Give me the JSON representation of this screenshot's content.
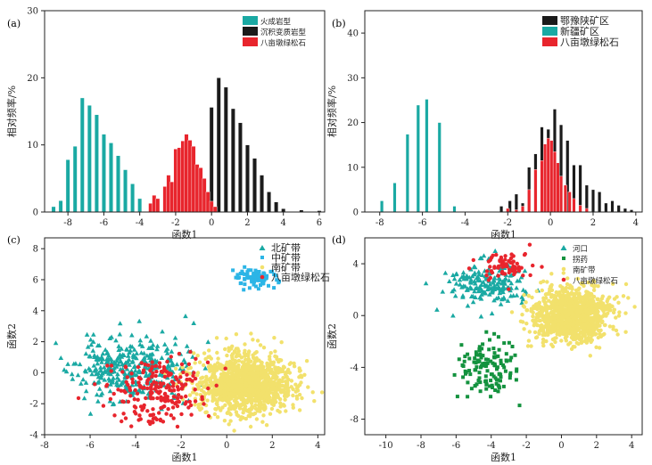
{
  "colors": {
    "igneous": "#1aa9a3",
    "sedimentary": "#1b1b1b",
    "bamudun": "#e8252d",
    "henan": "#1b1b1b",
    "xinjiang": "#1aa9a3",
    "north": "#1aa9a3",
    "middle": "#2cb5e6",
    "south": "#f2e16c",
    "bamudun_pts": "#e8252d",
    "hekou": "#1aa9a3",
    "zhaoyao": "#13923e",
    "nankuangdai": "#f2e16c"
  },
  "chart_data": [
    {
      "panel": "(a)",
      "type": "bar",
      "xlabel": "函数1",
      "ylabel": "相对频率/%",
      "xlim": [
        -9.3,
        6.3
      ],
      "ylim": [
        0,
        30
      ],
      "xticks": [
        -8,
        -6,
        -4,
        -2,
        0,
        2,
        4,
        6
      ],
      "yticks": [
        0,
        10,
        20,
        30
      ],
      "bin_width": 0.22,
      "legend_position": "top-right",
      "series": [
        {
          "name": "火成岩型",
          "color_key": "igneous",
          "x": [
            -8.8,
            -8.4,
            -8.0,
            -7.6,
            -7.2,
            -6.8,
            -6.4,
            -6.0,
            -5.6,
            -5.2,
            -4.8,
            -4.4,
            -4.0
          ],
          "values": [
            0.8,
            1.7,
            7.8,
            9.8,
            17.0,
            15.9,
            14.5,
            11.6,
            10.3,
            8.4,
            6.3,
            4.2,
            2.0
          ]
        },
        {
          "name": "沉积变质岩型",
          "color_key": "sedimentary",
          "x": [
            -1.2,
            -0.8,
            -0.4,
            0.0,
            0.4,
            0.8,
            1.2,
            1.6,
            2.0,
            2.4,
            2.8,
            3.2,
            3.6,
            4.0,
            5.0,
            6.0
          ],
          "values": [
            0.5,
            1.0,
            2.0,
            15.6,
            20.0,
            18.6,
            15.4,
            13.3,
            10.0,
            8.0,
            5.5,
            3.0,
            1.5,
            0.5,
            0.3,
            0.2
          ]
        },
        {
          "name": "八亩墩绿松石",
          "color_key": "bamudun",
          "x": [
            -3.4,
            -3.2,
            -3.0,
            -2.6,
            -2.4,
            -2.2,
            -2.0,
            -1.8,
            -1.6,
            -1.4,
            -1.2,
            -1.0,
            -0.8,
            -0.6,
            -0.4,
            -0.2,
            0.0,
            0.2
          ],
          "values": [
            1.3,
            2.5,
            2.0,
            3.8,
            5.5,
            4.5,
            9.4,
            9.6,
            10.6,
            11.6,
            10.7,
            9.8,
            7.1,
            6.6,
            5.0,
            3.0,
            1.6,
            0.8
          ]
        }
      ]
    },
    {
      "panel": "(b)",
      "type": "bar",
      "xlabel": "函数1",
      "ylabel": "相对频率/%",
      "xlim": [
        -8.7,
        4.3
      ],
      "ylim": [
        0,
        45
      ],
      "xticks": [
        -8,
        -6,
        -4,
        -2,
        0,
        2,
        4
      ],
      "yticks": [
        0,
        10,
        20,
        30,
        40
      ],
      "bin_width": 0.15,
      "legend_position": "top-right",
      "series": [
        {
          "name": "鄂豫陕矿区",
          "color_key": "henan",
          "x": [
            -2.3,
            -1.9,
            -1.6,
            -1.3,
            -1.0,
            -0.7,
            -0.4,
            -0.1,
            0.2,
            0.5,
            0.8,
            1.1,
            1.4,
            1.7,
            2.0,
            2.3,
            2.6,
            2.9,
            3.2,
            3.5,
            3.8
          ],
          "values": [
            1.3,
            2.5,
            4.0,
            2.0,
            10.0,
            13.0,
            19.0,
            18.5,
            23.0,
            19.5,
            16.0,
            10.5,
            10.5,
            6.0,
            5.0,
            4.5,
            2.0,
            2.5,
            1.5,
            0.8,
            0.5
          ]
        },
        {
          "name": "新疆矿区",
          "color_key": "xinjiang",
          "x": [
            -7.9,
            -7.3,
            -6.7,
            -6.2,
            -5.8,
            -5.2,
            -4.5
          ],
          "values": [
            2.5,
            6.5,
            17.4,
            23.9,
            25.2,
            20.0,
            1.3
          ]
        },
        {
          "name": "八亩墩绿松石",
          "color_key": "bamudun",
          "x": [
            -2.0,
            -1.6,
            -1.3,
            -1.0,
            -0.7,
            -0.4,
            -0.25,
            -0.1,
            0.05,
            0.2,
            0.35,
            0.5,
            0.7,
            0.9,
            1.1,
            1.4,
            1.7
          ],
          "values": [
            0.8,
            0.5,
            1.3,
            5.0,
            9.5,
            11.5,
            15.2,
            16.5,
            16.0,
            13.5,
            11.0,
            8.0,
            6.0,
            4.5,
            3.0,
            1.5,
            0.8
          ]
        }
      ]
    },
    {
      "panel": "(c)",
      "type": "scatter",
      "xlabel": "函数1",
      "ylabel": "函数2",
      "xlim": [
        -8,
        4.3
      ],
      "ylim": [
        -4,
        8.7
      ],
      "xticks": [
        -8,
        -6,
        -4,
        -2,
        0,
        2,
        4
      ],
      "yticks": [
        -4,
        -2,
        0,
        2,
        4,
        6,
        8
      ],
      "legend_position": "top-right",
      "series": [
        {
          "name": "北矿带",
          "color_key": "north",
          "marker": "triangle",
          "center": [
            -4.3,
            0.2
          ],
          "spread": [
            1.2,
            1.0
          ],
          "count": 360,
          "seed": 11
        },
        {
          "name": "中矿带",
          "color_key": "middle",
          "marker": "square",
          "center": [
            1.2,
            6.1
          ],
          "spread": [
            0.5,
            0.35
          ],
          "count": 75,
          "seed": 23
        },
        {
          "name": "南矿带",
          "color_key": "south",
          "marker": "circle",
          "center": [
            0.8,
            -0.7
          ],
          "spread": [
            1.05,
            0.95
          ],
          "count": 1300,
          "seed": 37
        },
        {
          "name": "八亩墩绿松石",
          "color_key": "bamudun_pts",
          "marker": "circle",
          "center": [
            -3.1,
            -1.2
          ],
          "spread": [
            1.0,
            1.05
          ],
          "count": 220,
          "seed": 53
        }
      ]
    },
    {
      "panel": "(d)",
      "type": "scatter",
      "xlabel": "函数1",
      "ylabel": "函数2",
      "xlim": [
        -11.2,
        4.6
      ],
      "ylim": [
        -9.2,
        6.0
      ],
      "xticks": [
        -10,
        -8,
        -6,
        -4,
        -2,
        0,
        2,
        4
      ],
      "yticks": [
        -8,
        -4,
        0,
        4
      ],
      "legend_position": "top-right",
      "series": [
        {
          "name": "河口",
          "color_key": "hekou",
          "marker": "triangle",
          "center": [
            -4.1,
            2.5
          ],
          "spread": [
            1.2,
            0.85
          ],
          "count": 190,
          "seed": 71
        },
        {
          "name": "拐药",
          "color_key": "zhaoyao",
          "marker": "square",
          "center": [
            -4.3,
            -4.0
          ],
          "spread": [
            0.85,
            1.2
          ],
          "count": 130,
          "seed": 83
        },
        {
          "name": "南矿带",
          "color_key": "nankuangdai",
          "marker": "circle",
          "center": [
            0.6,
            0.0
          ],
          "spread": [
            1.1,
            1.05
          ],
          "count": 1100,
          "seed": 97
        },
        {
          "name": "八亩墩绿松石",
          "color_key": "bamudun_pts",
          "marker": "circle",
          "center": [
            -3.0,
            3.8
          ],
          "spread": [
            0.7,
            0.55
          ],
          "count": 70,
          "seed": 109
        }
      ]
    }
  ]
}
